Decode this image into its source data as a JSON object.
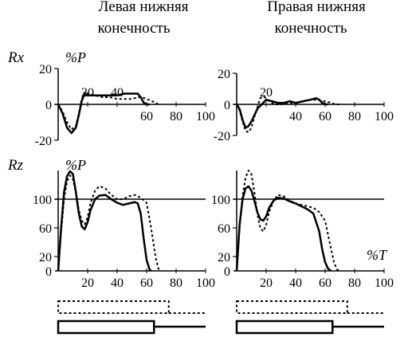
{
  "columns": [
    {
      "title_line1": "Левая нижняя",
      "title_line2": "конечность"
    },
    {
      "title_line1": "Правая нижняя",
      "title_line2": "конечность"
    }
  ],
  "rows": [
    {
      "label": "Rx",
      "y_unit": "%P"
    },
    {
      "label": "Rz",
      "y_unit": "%P"
    }
  ],
  "x_unit": "%T",
  "chart_data": [
    {
      "type": "line",
      "name": "rx-left",
      "xlim": [
        0,
        100
      ],
      "ylim": [
        -20,
        20
      ],
      "x_ticks": [
        20,
        40,
        60,
        80,
        100
      ],
      "y_ticks": [
        20,
        0,
        -20
      ],
      "series": [
        {
          "style": "solid",
          "x": [
            0,
            3,
            6,
            9,
            12,
            14,
            16,
            18,
            20,
            24,
            28,
            32,
            36,
            40,
            45,
            50,
            54,
            56,
            58,
            60,
            62
          ],
          "y": [
            0,
            -5,
            -13,
            -16,
            -13,
            -6,
            2,
            6,
            5,
            5,
            5,
            5,
            5,
            5,
            6,
            6,
            6,
            4,
            1,
            0,
            0
          ]
        },
        {
          "style": "dashed",
          "x": [
            0,
            3,
            6,
            9,
            12,
            14,
            16,
            18,
            20,
            25,
            30,
            35,
            40,
            45,
            50,
            54,
            57,
            60,
            63,
            66,
            68
          ],
          "y": [
            0,
            -4,
            -10,
            -14,
            -12,
            -5,
            3,
            7,
            6,
            5,
            4,
            4,
            3,
            3,
            3,
            4,
            4,
            3,
            2,
            1,
            0
          ]
        }
      ]
    },
    {
      "type": "line",
      "name": "rx-right",
      "xlim": [
        0,
        100
      ],
      "ylim": [
        -20,
        20
      ],
      "x_ticks": [
        20,
        40,
        60,
        80,
        100
      ],
      "y_ticks": [
        20,
        0,
        -20
      ],
      "series": [
        {
          "style": "solid",
          "x": [
            0,
            2,
            4,
            6,
            8,
            10,
            12,
            14,
            16,
            18,
            20,
            24,
            28,
            32,
            36,
            40,
            45,
            50,
            54,
            56,
            58,
            60,
            62
          ],
          "y": [
            0,
            -3,
            -10,
            -15,
            -14,
            -11,
            -7,
            -3,
            -1,
            1,
            3,
            2,
            1,
            1,
            2,
            1,
            2,
            3,
            4,
            3,
            1,
            0,
            0
          ]
        },
        {
          "style": "dashed",
          "x": [
            0,
            2,
            4,
            6,
            8,
            10,
            12,
            14,
            16,
            18,
            20,
            22,
            26,
            30,
            35,
            40,
            45,
            50,
            55,
            60,
            64,
            67,
            70
          ],
          "y": [
            0,
            -4,
            -11,
            -17,
            -18,
            -15,
            -8,
            -2,
            4,
            5,
            4,
            2,
            0,
            0,
            1,
            1,
            2,
            3,
            3,
            2,
            1,
            0,
            0
          ]
        }
      ]
    },
    {
      "type": "line",
      "name": "rz-left",
      "xlim": [
        0,
        100
      ],
      "ylim": [
        0,
        140
      ],
      "x_ticks": [
        20,
        40,
        60,
        80,
        100
      ],
      "y_ticks": [
        100,
        60,
        20
      ],
      "reference_line": 100,
      "series": [
        {
          "style": "solid",
          "x": [
            0,
            2,
            4,
            6,
            8,
            10,
            12,
            14,
            16,
            18,
            20,
            22,
            25,
            28,
            32,
            36,
            40,
            44,
            48,
            52,
            54,
            56,
            58,
            60,
            62,
            63
          ],
          "y": [
            0,
            60,
            110,
            132,
            139,
            135,
            110,
            80,
            62,
            58,
            68,
            85,
            100,
            105,
            106,
            100,
            95,
            92,
            94,
            96,
            94,
            80,
            45,
            15,
            2,
            0
          ]
        },
        {
          "style": "dashed",
          "x": [
            0,
            2,
            4,
            6,
            8,
            10,
            12,
            14,
            16,
            18,
            20,
            22,
            25,
            28,
            32,
            36,
            40,
            44,
            48,
            52,
            56,
            60,
            63,
            66,
            68,
            70
          ],
          "y": [
            0,
            55,
            100,
            125,
            133,
            128,
            110,
            85,
            70,
            65,
            75,
            95,
            112,
            118,
            115,
            106,
            100,
            100,
            104,
            106,
            102,
            95,
            60,
            20,
            3,
            0
          ]
        }
      ]
    },
    {
      "type": "line",
      "name": "rz-right",
      "xlim": [
        0,
        100
      ],
      "ylim": [
        0,
        140
      ],
      "x_unit": "%T",
      "x_ticks": [
        20,
        40,
        60,
        80,
        100
      ],
      "y_ticks": [
        100,
        60,
        20
      ],
      "reference_line": 100,
      "series": [
        {
          "style": "solid",
          "x": [
            0,
            2,
            4,
            6,
            8,
            10,
            12,
            14,
            16,
            18,
            20,
            22,
            25,
            28,
            32,
            36,
            40,
            44,
            48,
            52,
            56,
            58,
            60,
            62,
            64
          ],
          "y": [
            0,
            65,
            100,
            115,
            118,
            112,
            98,
            82,
            72,
            70,
            76,
            88,
            98,
            102,
            101,
            97,
            94,
            90,
            86,
            80,
            55,
            30,
            12,
            3,
            0
          ]
        },
        {
          "style": "dashed",
          "x": [
            0,
            2,
            4,
            6,
            8,
            10,
            12,
            14,
            16,
            18,
            20,
            22,
            25,
            28,
            32,
            36,
            40,
            44,
            48,
            52,
            56,
            60,
            63,
            66,
            68,
            70
          ],
          "y": [
            0,
            60,
            105,
            130,
            140,
            135,
            110,
            80,
            60,
            55,
            64,
            82,
            98,
            106,
            104,
            98,
            94,
            92,
            90,
            88,
            82,
            70,
            40,
            12,
            2,
            0
          ]
        }
      ]
    }
  ],
  "phase_bars": [
    {
      "name": "left",
      "dashed_end": 75,
      "dashed_line_end": 100,
      "solid_end": 65,
      "solid_line_end": 100
    },
    {
      "name": "right",
      "dashed_end": 75,
      "dashed_line_end": 100,
      "solid_end": 65,
      "solid_line_end": 100
    }
  ]
}
